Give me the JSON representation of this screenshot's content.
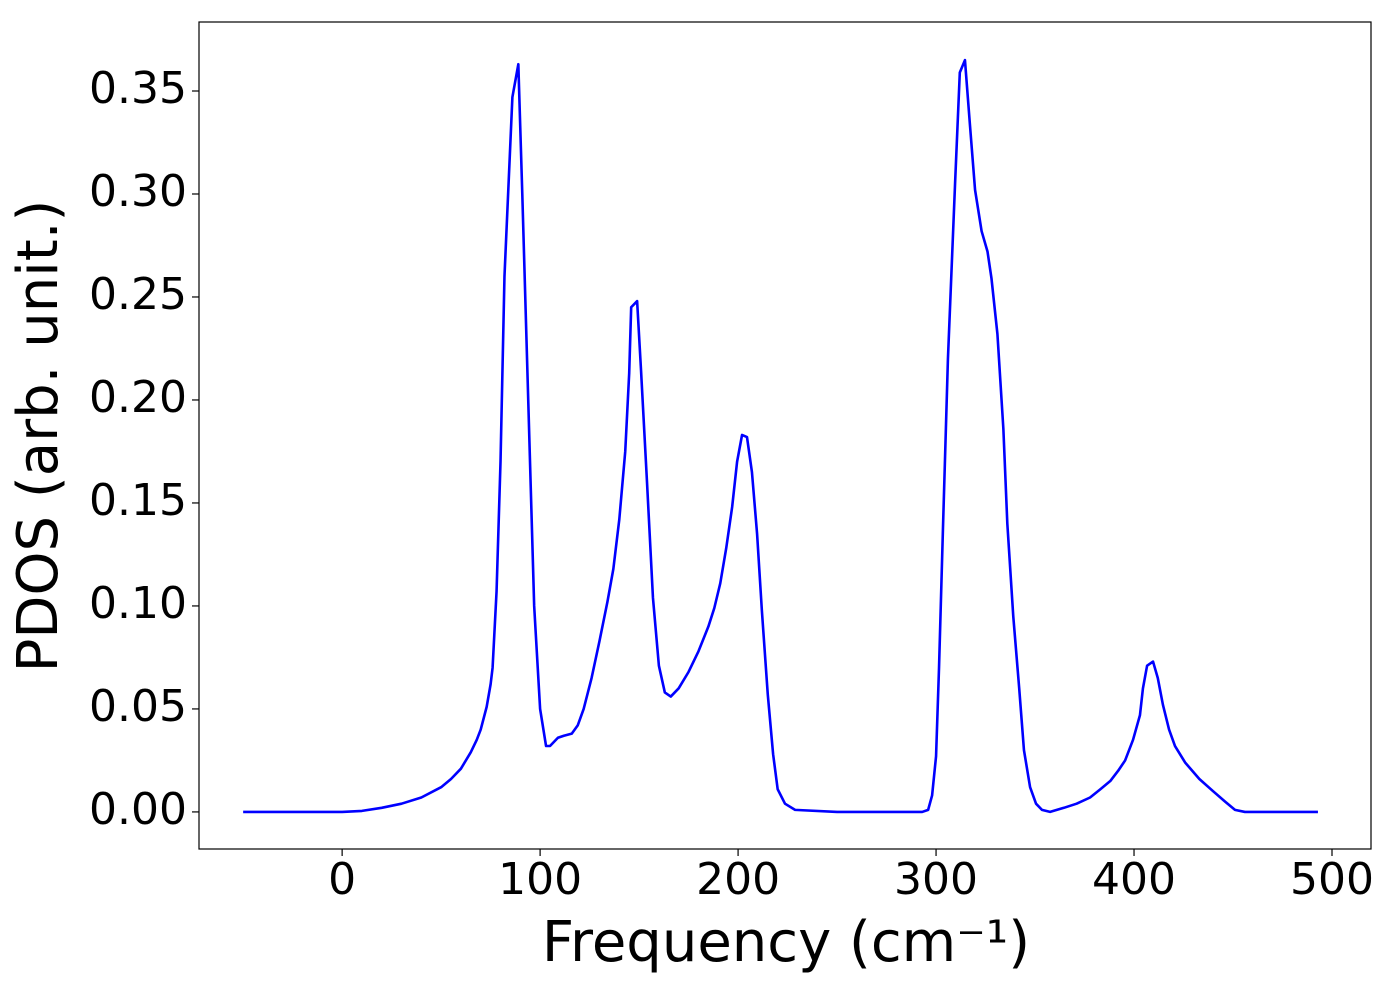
{
  "chart_data": {
    "type": "line",
    "xlabel": "Frequency (cm⁻¹)",
    "ylabel": "PDOS (arb. unit.)",
    "x": [
      -50,
      -25,
      0,
      10,
      20,
      30,
      40,
      50,
      55,
      60,
      65,
      68,
      70,
      73,
      75,
      76,
      78,
      80,
      82,
      86,
      89,
      91,
      94,
      97,
      100,
      103,
      105,
      109,
      112,
      116,
      119,
      122,
      126,
      130,
      134,
      137,
      140,
      143,
      145,
      146,
      149,
      151,
      154,
      157,
      160,
      163,
      166,
      170,
      175,
      180,
      185,
      188,
      191,
      194,
      197,
      199.5,
      202,
      204.5,
      207,
      209.6,
      212,
      215,
      217.7,
      220,
      223.7,
      228.8,
      250,
      285,
      293,
      296,
      298,
      300,
      301.5,
      303.5,
      306,
      309.6,
      312,
      314.6,
      317,
      319.7,
      323,
      326,
      328,
      331,
      334,
      336,
      339,
      342,
      344.4,
      347.5,
      350.5,
      353.5,
      357.6,
      364.6,
      371,
      377.8,
      383,
      388,
      392,
      395.5,
      399.5,
      403,
      404.5,
      406.6,
      409.6,
      412,
      414.6,
      417.7,
      420.7,
      425.8,
      433,
      440,
      446,
      451,
      456,
      470,
      492.9
    ],
    "series": [
      {
        "name": "PDOS",
        "color": "#0000ff",
        "values": [
          0,
          0,
          0,
          0.0005,
          0.002,
          0.004,
          0.007,
          0.012,
          0.016,
          0.021,
          0.029,
          0.035,
          0.04,
          0.051,
          0.062,
          0.07,
          0.107,
          0.17,
          0.26,
          0.347,
          0.363,
          0.3,
          0.2,
          0.1,
          0.05,
          0.032,
          0.032,
          0.036,
          0.037,
          0.038,
          0.042,
          0.05,
          0.065,
          0.083,
          0.102,
          0.118,
          0.142,
          0.175,
          0.213,
          0.245,
          0.248,
          0.214,
          0.16,
          0.104,
          0.071,
          0.058,
          0.056,
          0.06,
          0.068,
          0.078,
          0.09,
          0.099,
          0.111,
          0.128,
          0.148,
          0.17,
          0.183,
          0.182,
          0.165,
          0.135,
          0.098,
          0.057,
          0.028,
          0.011,
          0.004,
          0.001,
          0,
          0,
          0,
          0.001,
          0.008,
          0.027,
          0.07,
          0.138,
          0.22,
          0.305,
          0.359,
          0.365,
          0.335,
          0.302,
          0.282,
          0.272,
          0.259,
          0.232,
          0.186,
          0.14,
          0.095,
          0.06,
          0.03,
          0.012,
          0.004,
          0.001,
          0,
          0.002,
          0.004,
          0.007,
          0.011,
          0.015,
          0.02,
          0.025,
          0.035,
          0.047,
          0.06,
          0.071,
          0.073,
          0.065,
          0.052,
          0.04,
          0.032,
          0.024,
          0.016,
          0.01,
          0.005,
          0.001,
          0,
          0,
          0
        ]
      }
    ],
    "xlim": [
      -72.3,
      519.7
    ],
    "ylim": [
      -0.018,
      0.3835
    ],
    "xticks": [
      0,
      100,
      200,
      300,
      400,
      500
    ],
    "yticks": [
      {
        "value": 0,
        "label": "0.00"
      },
      {
        "value": 0.05,
        "label": "0.05"
      },
      {
        "value": 0.1,
        "label": "0.10"
      },
      {
        "value": 0.15,
        "label": "0.15"
      },
      {
        "value": 0.2,
        "label": "0.20"
      },
      {
        "value": 0.25,
        "label": "0.25"
      },
      {
        "value": 0.3,
        "label": "0.30"
      },
      {
        "value": 0.35,
        "label": "0.35"
      }
    ],
    "grid": false
  }
}
